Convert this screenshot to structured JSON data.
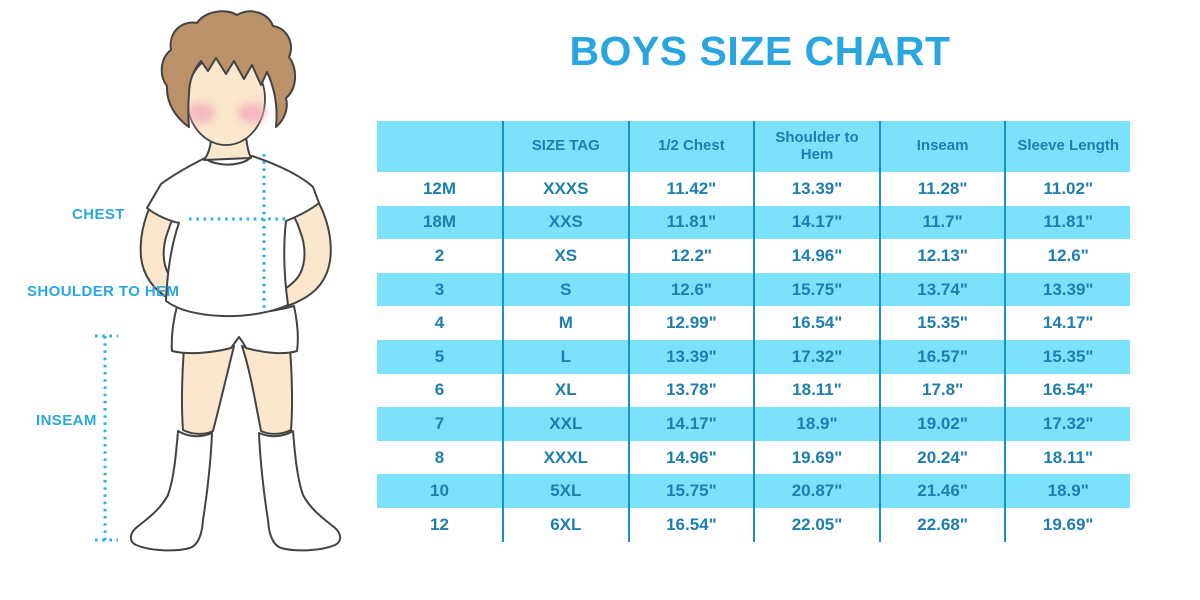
{
  "title": "BOYS SIZE CHART",
  "colors": {
    "title_accent": "#29A5DF",
    "table_fill_cyan": "#7CE2FB",
    "table_text_blue": "#1E7EB0",
    "column_divider": "#1B90C6",
    "measure_dots": "#2FB0E5",
    "skin": "#FBE7CB",
    "hair": "#BA9169",
    "cheek": "#F3ACC0"
  },
  "diagram": {
    "labels": {
      "chest": "CHEST",
      "shoulder_to_hem": "SHOULDER TO HEM",
      "inseam": "INSEAM"
    }
  },
  "chart_data": {
    "type": "table",
    "title": "BOYS SIZE CHART",
    "headers": [
      "",
      "SIZE TAG",
      "1/2 Chest",
      "Shoulder to Hem",
      "Inseam",
      "Sleeve Length"
    ],
    "rows": [
      [
        "12M",
        "XXXS",
        "11.42\"",
        "13.39\"",
        "11.28\"",
        "11.02\""
      ],
      [
        "18M",
        "XXS",
        "11.81\"",
        "14.17\"",
        "11.7\"",
        "11.81\""
      ],
      [
        "2",
        "XS",
        "12.2\"",
        "14.96\"",
        "12.13\"",
        "12.6\""
      ],
      [
        "3",
        "S",
        "12.6\"",
        "15.75\"",
        "13.74\"",
        "13.39\""
      ],
      [
        "4",
        "M",
        "12.99\"",
        "16.54\"",
        "15.35\"",
        "14.17\""
      ],
      [
        "5",
        "L",
        "13.39\"",
        "17.32\"",
        "16.57\"",
        "15.35\""
      ],
      [
        "6",
        "XL",
        "13.78\"",
        "18.11\"",
        "17.8\"",
        "16.54\""
      ],
      [
        "7",
        "XXL",
        "14.17\"",
        "18.9\"",
        "19.02\"",
        "17.32\""
      ],
      [
        "8",
        "XXXL",
        "14.96\"",
        "19.69\"",
        "20.24\"",
        "18.11\""
      ],
      [
        "10",
        "5XL",
        "15.75\"",
        "20.87\"",
        "21.46\"",
        "18.9\""
      ],
      [
        "12",
        "6XL",
        "16.54\"",
        "22.05\"",
        "22.68\"",
        "19.69\""
      ]
    ]
  }
}
